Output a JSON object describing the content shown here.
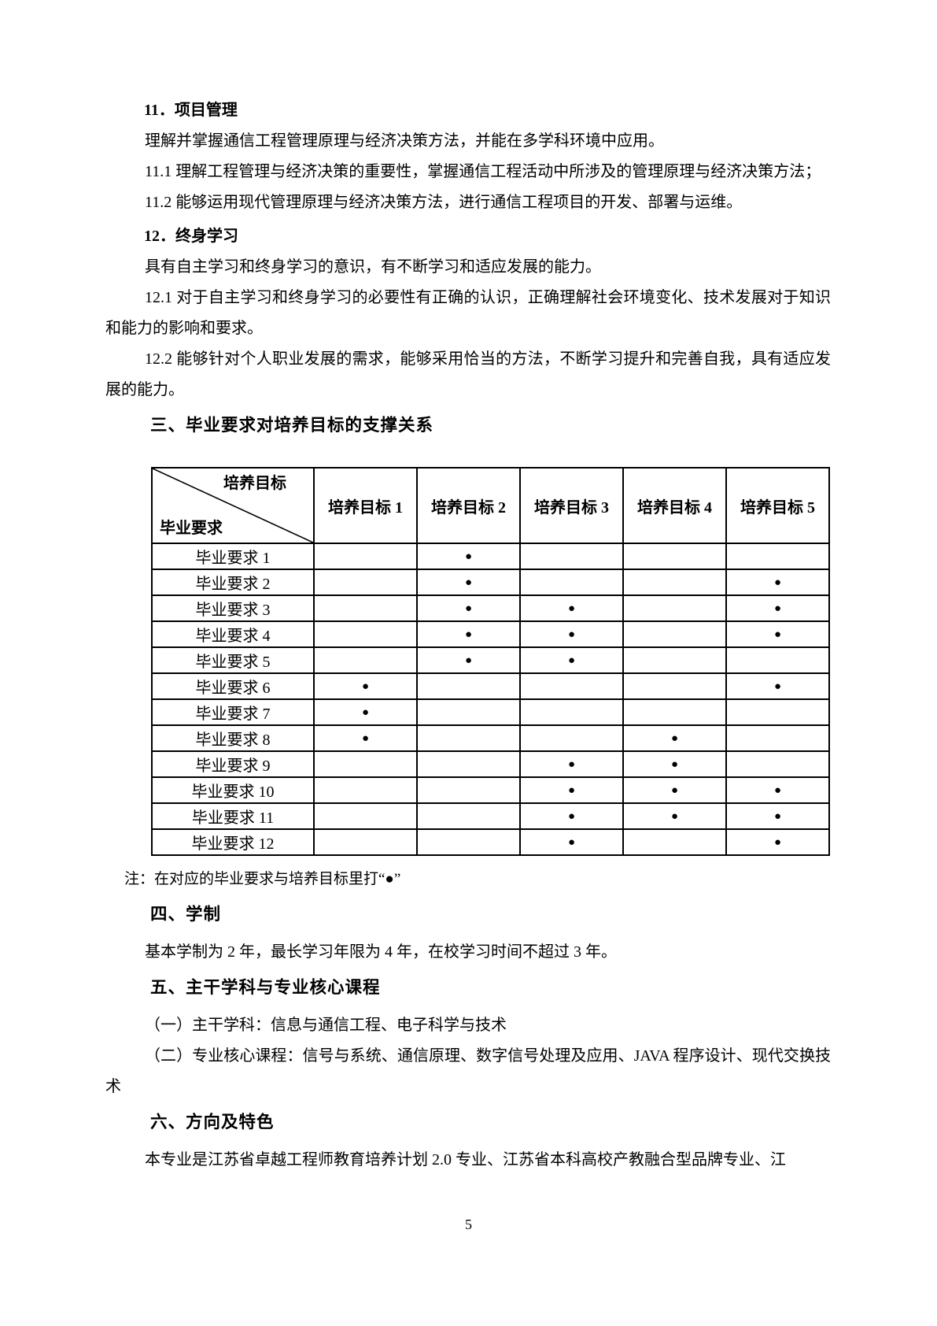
{
  "page": {
    "number": "5"
  },
  "colors": {
    "text": "#000000",
    "page_background": "#ffffff",
    "table_border": "#000000"
  },
  "document": {
    "blocks": [
      {
        "type": "h2",
        "name": "heading-11-project-management",
        "text": "11．项目管理"
      },
      {
        "type": "p",
        "name": "para-11-intro",
        "text": "理解并掌握通信工程管理原理与经济决策方法，并能在多学科环境中应用。"
      },
      {
        "type": "p",
        "name": "para-11-1",
        "text": "11.1 理解工程管理与经济决策的重要性，掌握通信工程活动中所涉及的管理原理与经济决策方法；"
      },
      {
        "type": "p",
        "name": "para-11-2",
        "text": "11.2 能够运用现代管理原理与经济决策方法，进行通信工程项目的开发、部署与运维。"
      },
      {
        "type": "h2",
        "name": "heading-12-lifelong-learning",
        "text": "12．终身学习"
      },
      {
        "type": "p",
        "name": "para-12-intro",
        "text": "具有自主学习和终身学习的意识，有不断学习和适应发展的能力。"
      },
      {
        "type": "p",
        "name": "para-12-1",
        "text": "12.1 对于自主学习和终身学习的必要性有正确的认识，正确理解社会环境变化、技术发展对于知识和能力的影响和要求。"
      },
      {
        "type": "p",
        "name": "para-12-2",
        "text": "12.2 能够针对个人职业发展的需求，能够采用恰当的方法，不断学习提升和完善自我，具有适应发展的能力。"
      },
      {
        "type": "h1",
        "name": "heading-section-3-support-matrix",
        "text": "三、毕业要求对培养目标的支撑关系"
      },
      {
        "type": "table",
        "name": "support-matrix-table"
      },
      {
        "type": "note",
        "name": "table-note",
        "text": "注：在对应的毕业要求与培养目标里打“●”"
      },
      {
        "type": "h1",
        "name": "heading-section-4-schooling-length",
        "text": "四、学制"
      },
      {
        "type": "p",
        "name": "para-schooling-length",
        "text": "基本学制为 2 年，最长学习年限为 4 年，在校学习时间不超过 3 年。"
      },
      {
        "type": "h1",
        "name": "heading-section-5-core-courses",
        "text": "五、主干学科与专业核心课程"
      },
      {
        "type": "p",
        "name": "para-main-disciplines",
        "text": "（一）主干学科：信息与通信工程、电子科学与技术"
      },
      {
        "type": "p",
        "name": "para-core-courses",
        "text": "（二）专业核心课程：信号与系统、通信原理、数字信号处理及应用、JAVA 程序设计、现代交换技术"
      },
      {
        "type": "h1",
        "name": "heading-section-6-direction",
        "text": "六、方向及特色"
      },
      {
        "type": "p",
        "name": "para-direction",
        "text": "本专业是江苏省卓越工程师教育培养计划 2.0 专业、江苏省本科高校产教融合型品牌专业、江"
      }
    ]
  },
  "matrix_table": {
    "corner": {
      "top_right": "培养目标",
      "bottom_left": "毕业要求"
    },
    "columns": [
      "培养目标 1",
      "培养目标 2",
      "培养目标 3",
      "培养目标 4",
      "培养目标 5"
    ],
    "mark_glyph": "●",
    "rows": [
      {
        "label": "毕业要求 1",
        "marks": [
          0,
          1,
          0,
          0,
          0
        ]
      },
      {
        "label": "毕业要求 2",
        "marks": [
          0,
          1,
          0,
          0,
          1
        ]
      },
      {
        "label": "毕业要求 3",
        "marks": [
          0,
          1,
          1,
          0,
          1
        ]
      },
      {
        "label": "毕业要求 4",
        "marks": [
          0,
          1,
          1,
          0,
          1
        ]
      },
      {
        "label": "毕业要求 5",
        "marks": [
          0,
          1,
          1,
          0,
          0
        ]
      },
      {
        "label": "毕业要求 6",
        "marks": [
          1,
          0,
          0,
          0,
          1
        ]
      },
      {
        "label": "毕业要求 7",
        "marks": [
          1,
          0,
          0,
          0,
          0
        ]
      },
      {
        "label": "毕业要求 8",
        "marks": [
          1,
          0,
          0,
          1,
          0
        ]
      },
      {
        "label": "毕业要求 9",
        "marks": [
          0,
          0,
          1,
          1,
          0
        ]
      },
      {
        "label": "毕业要求 10",
        "marks": [
          0,
          0,
          1,
          1,
          1
        ]
      },
      {
        "label": "毕业要求 11",
        "marks": [
          0,
          0,
          1,
          1,
          1
        ]
      },
      {
        "label": "毕业要求 12",
        "marks": [
          0,
          0,
          1,
          0,
          1
        ]
      }
    ]
  }
}
